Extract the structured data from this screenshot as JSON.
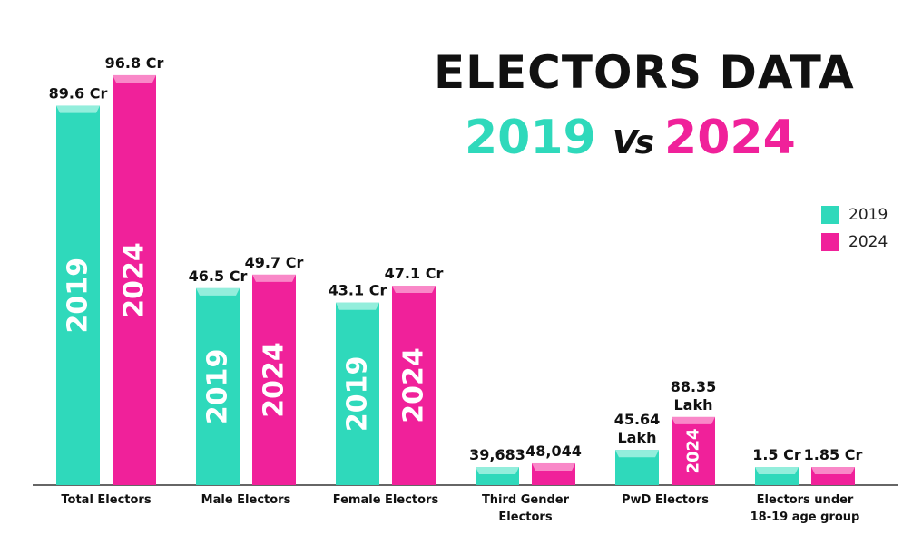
{
  "title": "ELECTORS DATA",
  "subtitle": {
    "year1": "2019",
    "vs": "Vs",
    "year2": "2024"
  },
  "colors": {
    "2019": "#2fd9bb",
    "2019_top": "#9ff0e0",
    "2024": "#f0219a",
    "2024_top": "#f994cd",
    "axis": "#333333"
  },
  "chart_data": {
    "type": "bar",
    "title": "ELECTORS DATA 2019 Vs 2024",
    "legend_position": "right",
    "grid": false,
    "categories": [
      "Total Electors",
      "Male Electors",
      "Female Electors",
      "Third Gender Electors",
      "PwD Electors",
      "Electors under 18-19 age group"
    ],
    "category_lines": [
      [
        "Total Electors"
      ],
      [
        "Male Electors"
      ],
      [
        "Female Electors"
      ],
      [
        "Third Gender",
        "Electors"
      ],
      [
        "PwD Electors"
      ],
      [
        "Electors under",
        "18-19 age group"
      ]
    ],
    "series": [
      {
        "name": "2019",
        "values": [
          89.6,
          46.5,
          43.1,
          39683,
          45.64,
          1.5
        ],
        "units": [
          "Cr",
          "Cr",
          "Cr",
          "",
          "Lakh",
          "Cr"
        ],
        "labels": [
          [
            "89.6 Cr"
          ],
          [
            "46.5 Cr"
          ],
          [
            "43.1 Cr"
          ],
          [
            "39,683"
          ],
          [
            "45.64",
            "Lakh"
          ],
          [
            "1.5 Cr"
          ]
        ]
      },
      {
        "name": "2024",
        "values": [
          96.8,
          49.7,
          47.1,
          48044,
          88.35,
          1.85
        ],
        "units": [
          "Cr",
          "Cr",
          "Cr",
          "",
          "Lakh",
          "Cr"
        ],
        "labels": [
          [
            "96.8 Cr"
          ],
          [
            "49.7 Cr"
          ],
          [
            "47.1 Cr"
          ],
          [
            "48,044"
          ],
          [
            "88.35",
            "Lakh"
          ],
          [
            "1.85 Cr"
          ]
        ]
      }
    ]
  }
}
